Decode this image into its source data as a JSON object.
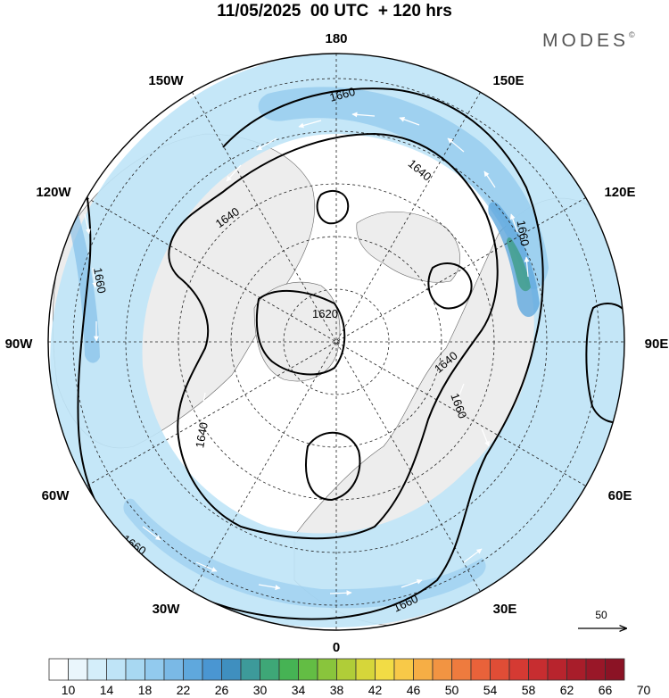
{
  "title": "11/05/2025  00 UTC  + 120 hrs",
  "brand": {
    "text": "MODES",
    "mark": "©"
  },
  "longitude_labels": [
    "180",
    "150E",
    "120E",
    "90E",
    "60E",
    "30E",
    "0",
    "30W",
    "60W",
    "90W",
    "120W",
    "150W"
  ],
  "contour_labels": [
    "1620",
    "1640",
    "1640",
    "1640",
    "1640",
    "1660",
    "1660",
    "1660",
    "1660",
    "1660",
    "1660"
  ],
  "wind_reference": {
    "label": "50",
    "icon": "arrow-right-icon"
  },
  "colorbar": {
    "tick_labels": [
      "10",
      "14",
      "18",
      "22",
      "26",
      "30",
      "34",
      "38",
      "42",
      "46",
      "50",
      "54",
      "58",
      "62",
      "66",
      "70"
    ],
    "colors": [
      "#ffffff",
      "#eaf6fc",
      "#d4eefa",
      "#bfe4f7",
      "#a8d8f2",
      "#92caee",
      "#7ab9e6",
      "#5fa8dd",
      "#4a96d2",
      "#3f8fbf",
      "#3d9a9a",
      "#3ea777",
      "#46b354",
      "#63bd44",
      "#89c53c",
      "#b0cd38",
      "#d6d63a",
      "#f2dc45",
      "#f8c948",
      "#f6ae45",
      "#f29442",
      "#ee7b3e",
      "#e9623a",
      "#e04d36",
      "#d53a33",
      "#c72d30",
      "#b8242d",
      "#a81d2a",
      "#991728",
      "#8b1325"
    ]
  }
}
